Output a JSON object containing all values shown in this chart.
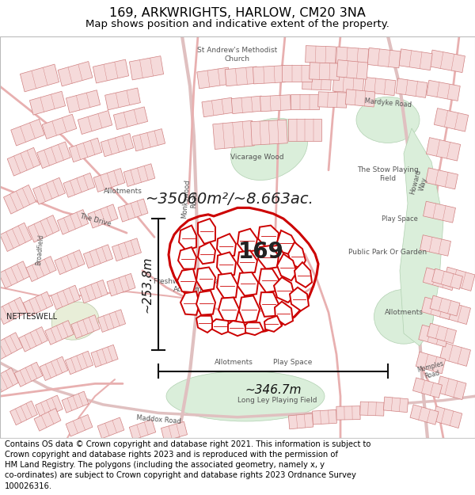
{
  "title": "169, ARKWRIGHTS, HARLOW, CM20 3NA",
  "subtitle": "Map shows position and indicative extent of the property.",
  "property_label": "169",
  "area_label": "~35060m²/~8.663ac.",
  "width_label": "~346.7m",
  "height_label": "~253.8m",
  "footer_text": "Contains OS data © Crown copyright and database right 2021. This information is subject to Crown copyright and database rights 2023 and is reproduced with the permission of HM Land Registry. The polygons (including the associated geometry, namely x, y co-ordinates) are subject to Crown copyright and database rights 2023 Ordnance Survey 100026316.",
  "fig_width": 6.0,
  "fig_height": 6.25,
  "dpi": 100,
  "map_bg": "#f5f0ee",
  "title_fontsize": 11.5,
  "subtitle_fontsize": 9.5,
  "area_label_fontsize": 14,
  "prop_label_fontsize": 20,
  "measure_fontsize": 11,
  "footer_fontsize": 7.2,
  "road_color": "#e8b0b0",
  "building_fill": "#f5dada",
  "building_edge": "#d08080",
  "green_fill": "#daeeda",
  "green_edge": "#b0d0b0",
  "prop_color": "#cc0000",
  "prop_lw": 2.2,
  "text_color": "#555555",
  "dark_text": "#222222",
  "measure_color": "#111111"
}
